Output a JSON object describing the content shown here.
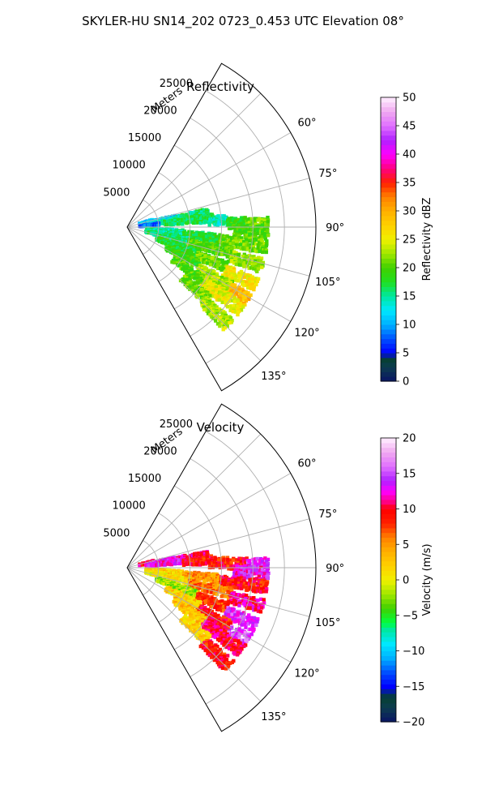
{
  "suptitle": "SKYLER-HU  SN14_202  0723_0.453 UTC Elevation 08°",
  "chart_data": [
    {
      "type": "heatmap",
      "projection": "polar-sector",
      "title": "Reflectivity",
      "radial_axis_label": "Meters",
      "radial_ticks": [
        "5000",
        "10000",
        "15000",
        "20000",
        "25000"
      ],
      "radial_tick_values": [
        5000,
        10000,
        15000,
        20000,
        25000
      ],
      "rlim": [
        0,
        30000
      ],
      "angle_ticks": [
        "60°",
        "75°",
        "90°",
        "105°",
        "120°",
        "135°"
      ],
      "angle_tick_values": [
        60,
        75,
        90,
        105,
        120,
        135
      ],
      "theta_range_deg": [
        30,
        150
      ],
      "theta_zero": "north",
      "theta_direction": "clockwise",
      "grid": true,
      "colorbar": {
        "label": "Reflectivity dBZ",
        "ticks": [
          "0",
          "5",
          "10",
          "15",
          "20",
          "25",
          "30",
          "35",
          "40",
          "45",
          "50"
        ],
        "range": [
          0,
          50
        ],
        "stops": [
          {
            "v": 0,
            "c": "#0a1464"
          },
          {
            "v": 2.5,
            "c": "#0c3c50"
          },
          {
            "v": 4,
            "c": "#064030"
          },
          {
            "v": 5,
            "c": "#0000ff"
          },
          {
            "v": 7.5,
            "c": "#0050ff"
          },
          {
            "v": 10,
            "c": "#00b0ff"
          },
          {
            "v": 12.5,
            "c": "#00e8ff"
          },
          {
            "v": 15,
            "c": "#00e8a0"
          },
          {
            "v": 17.5,
            "c": "#20e020"
          },
          {
            "v": 20,
            "c": "#40d000"
          },
          {
            "v": 22.5,
            "c": "#a0e800"
          },
          {
            "v": 25,
            "c": "#f0f000"
          },
          {
            "v": 27.5,
            "c": "#ffd000"
          },
          {
            "v": 30,
            "c": "#ffb000"
          },
          {
            "v": 32.5,
            "c": "#ff8000"
          },
          {
            "v": 35,
            "c": "#ff2000"
          },
          {
            "v": 37.5,
            "c": "#ff0080"
          },
          {
            "v": 40,
            "c": "#ff00ff"
          },
          {
            "v": 42.5,
            "c": "#b020ff"
          },
          {
            "v": 45,
            "c": "#e070ff"
          },
          {
            "v": 47.5,
            "c": "#f0a8f0"
          },
          {
            "v": 50,
            "c": "#fff0ff"
          }
        ]
      },
      "cells": [
        {
          "ang": 76,
          "r0": 2000,
          "r1": 4500,
          "v": 11
        },
        {
          "ang": 79,
          "r0": 4500,
          "r1": 8000,
          "v": 12
        },
        {
          "ang": 80,
          "r0": 8000,
          "r1": 13000,
          "v": 16
        },
        {
          "ang": 82,
          "r0": 3000,
          "r1": 9000,
          "v": 14
        },
        {
          "ang": 84,
          "r0": 6000,
          "r1": 14000,
          "v": 17
        },
        {
          "ang": 85,
          "r0": 2000,
          "r1": 5000,
          "v": 8
        },
        {
          "ang": 86,
          "r0": 13000,
          "r1": 16000,
          "v": 14
        },
        {
          "ang": 88,
          "r0": 16000,
          "r1": 19000,
          "v": 19
        },
        {
          "ang": 89,
          "r0": 19000,
          "r1": 22500,
          "v": 21
        },
        {
          "ang": 92,
          "r0": 17000,
          "r1": 22500,
          "v": 20
        },
        {
          "ang": 96,
          "r0": 3000,
          "r1": 9000,
          "v": 15
        },
        {
          "ang": 97,
          "r0": 9000,
          "r1": 15000,
          "v": 18
        },
        {
          "ang": 98,
          "r0": 15000,
          "r1": 22500,
          "v": 21
        },
        {
          "ang": 103,
          "r0": 3000,
          "r1": 10000,
          "v": 16
        },
        {
          "ang": 104,
          "r0": 10000,
          "r1": 17000,
          "v": 20
        },
        {
          "ang": 106,
          "r0": 17000,
          "r1": 22500,
          "v": 22
        },
        {
          "ang": 111,
          "r0": 5000,
          "r1": 12000,
          "v": 18
        },
        {
          "ang": 112,
          "r0": 12000,
          "r1": 17000,
          "v": 21
        },
        {
          "ang": 114,
          "r0": 17000,
          "r1": 22500,
          "v": 26
        },
        {
          "ang": 118,
          "r0": 7000,
          "r1": 13000,
          "v": 19
        },
        {
          "ang": 120,
          "r0": 13000,
          "r1": 19000,
          "v": 23
        },
        {
          "ang": 121,
          "r0": 19000,
          "r1": 22500,
          "v": 29
        },
        {
          "ang": 125,
          "r0": 9000,
          "r1": 15000,
          "v": 20
        },
        {
          "ang": 126,
          "r0": 15000,
          "r1": 22500,
          "v": 25
        },
        {
          "ang": 132,
          "r0": 12000,
          "r1": 17000,
          "v": 21
        },
        {
          "ang": 134,
          "r0": 17000,
          "r1": 22500,
          "v": 23
        }
      ]
    },
    {
      "type": "heatmap",
      "projection": "polar-sector",
      "title": "Velocity",
      "radial_axis_label": "Meters",
      "radial_ticks": [
        "5000",
        "10000",
        "15000",
        "20000",
        "25000"
      ],
      "radial_tick_values": [
        5000,
        10000,
        15000,
        20000,
        25000
      ],
      "rlim": [
        0,
        30000
      ],
      "angle_ticks": [
        "60°",
        "75°",
        "90°",
        "105°",
        "120°",
        "135°"
      ],
      "angle_tick_values": [
        60,
        75,
        90,
        105,
        120,
        135
      ],
      "theta_range_deg": [
        30,
        150
      ],
      "theta_zero": "north",
      "theta_direction": "clockwise",
      "grid": true,
      "colorbar": {
        "label": "Velocity (m/s)",
        "ticks": [
          "−20",
          "−15",
          "−10",
          "−5",
          "0",
          "5",
          "10",
          "15",
          "20"
        ],
        "range": [
          -20,
          20
        ],
        "stops": [
          {
            "v": -20,
            "c": "#0a1464"
          },
          {
            "v": -18,
            "c": "#0c3c50"
          },
          {
            "v": -16.5,
            "c": "#064030"
          },
          {
            "v": -15,
            "c": "#0000ff"
          },
          {
            "v": -13,
            "c": "#0050ff"
          },
          {
            "v": -11,
            "c": "#00b0ff"
          },
          {
            "v": -9,
            "c": "#00e8ff"
          },
          {
            "v": -7,
            "c": "#00e8a0"
          },
          {
            "v": -6,
            "c": "#00ff40"
          },
          {
            "v": -4,
            "c": "#40d000"
          },
          {
            "v": -2,
            "c": "#a0e800"
          },
          {
            "v": 0,
            "c": "#f0f000"
          },
          {
            "v": 2,
            "c": "#ffd000"
          },
          {
            "v": 4,
            "c": "#ffb000"
          },
          {
            "v": 6,
            "c": "#ff8000"
          },
          {
            "v": 8,
            "c": "#ff2000"
          },
          {
            "v": 10,
            "c": "#ff0000"
          },
          {
            "v": 11,
            "c": "#ff0080"
          },
          {
            "v": 12.5,
            "c": "#ff00ff"
          },
          {
            "v": 14,
            "c": "#b020ff"
          },
          {
            "v": 16,
            "c": "#e070ff"
          },
          {
            "v": 18,
            "c": "#f0a8f0"
          },
          {
            "v": 20,
            "c": "#fff0ff"
          }
        ]
      },
      "cells": [
        {
          "ang": 77,
          "r0": 2000,
          "r1": 4500,
          "v": 10
        },
        {
          "ang": 80,
          "r0": 4500,
          "r1": 8000,
          "v": 13
        },
        {
          "ang": 81,
          "r0": 8000,
          "r1": 13000,
          "v": 11
        },
        {
          "ang": 83,
          "r0": 3000,
          "r1": 9000,
          "v": 13
        },
        {
          "ang": 85,
          "r0": 9000,
          "r1": 14000,
          "v": 9
        },
        {
          "ang": 87,
          "r0": 13000,
          "r1": 16000,
          "v": 9
        },
        {
          "ang": 88,
          "r0": 16000,
          "r1": 19000,
          "v": 9
        },
        {
          "ang": 89,
          "r0": 19000,
          "r1": 22500,
          "v": 14
        },
        {
          "ang": 92,
          "r0": 17000,
          "r1": 22500,
          "v": 13
        },
        {
          "ang": 96,
          "r0": 3000,
          "r1": 9000,
          "v": 2
        },
        {
          "ang": 97,
          "r0": 9000,
          "r1": 15000,
          "v": 5
        },
        {
          "ang": 98,
          "r0": 15000,
          "r1": 22500,
          "v": 9
        },
        {
          "ang": 103,
          "r0": 3000,
          "r1": 10000,
          "v": 1
        },
        {
          "ang": 104,
          "r0": 10000,
          "r1": 17000,
          "v": 6
        },
        {
          "ang": 106,
          "r0": 17000,
          "r1": 22500,
          "v": 11
        },
        {
          "ang": 111,
          "r0": 5000,
          "r1": 12000,
          "v": -2
        },
        {
          "ang": 112,
          "r0": 12000,
          "r1": 17000,
          "v": 8
        },
        {
          "ang": 114,
          "r0": 17000,
          "r1": 22500,
          "v": 14
        },
        {
          "ang": 118,
          "r0": 7000,
          "r1": 13000,
          "v": 2
        },
        {
          "ang": 120,
          "r0": 13000,
          "r1": 19000,
          "v": 9
        },
        {
          "ang": 121,
          "r0": 19000,
          "r1": 22500,
          "v": 15
        },
        {
          "ang": 125,
          "r0": 9000,
          "r1": 15000,
          "v": 3
        },
        {
          "ang": 126,
          "r0": 15000,
          "r1": 22500,
          "v": 10
        },
        {
          "ang": 132,
          "r0": 12000,
          "r1": 17000,
          "v": 2
        },
        {
          "ang": 134,
          "r0": 17000,
          "r1": 22500,
          "v": 9
        }
      ]
    }
  ]
}
